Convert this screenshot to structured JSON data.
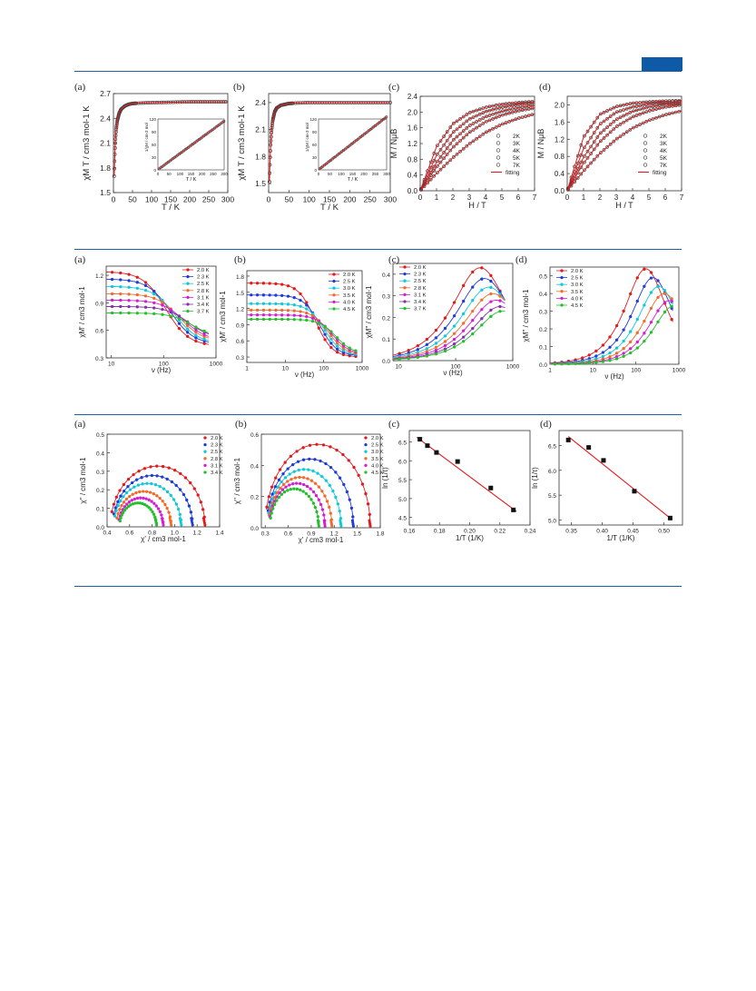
{
  "colors": {
    "rule": "#1b5fa6",
    "accent": "#0e5aa7",
    "fit": "#e31a1c",
    "marker": "#555555"
  },
  "chart_data": [
    {
      "id": "r1a",
      "type": "line",
      "panel": "(a)",
      "xlabel": "T / K",
      "ylabel": "χM T / cm3 mol-1 K",
      "xlim": [
        0,
        300
      ],
      "ylim": [
        1.5,
        2.7
      ],
      "xticks": [
        "0",
        "50",
        "100",
        "150",
        "200",
        "250",
        "300"
      ],
      "yticks": [
        "1.5",
        "1.8",
        "2.1",
        "2.4",
        "2.7"
      ],
      "series": [
        {
          "x": [
            1.8,
            3,
            4,
            5,
            7,
            10,
            15,
            20,
            30,
            40,
            50,
            70,
            100,
            150,
            200,
            250,
            300
          ],
          "y": [
            1.7,
            1.88,
            2.02,
            2.12,
            2.26,
            2.37,
            2.46,
            2.51,
            2.55,
            2.57,
            2.58,
            2.585,
            2.59,
            2.595,
            2.6,
            2.6,
            2.6
          ]
        }
      ],
      "inset": {
        "xlabel": "T / K",
        "ylabel": "1/χM / cm-3 mol",
        "xlim": [
          0,
          300
        ],
        "ylim": [
          0,
          120
        ],
        "xticks": [
          "0",
          "50",
          "100",
          "150",
          "200",
          "250",
          "300"
        ],
        "yticks": [
          "0",
          "30",
          "60",
          "90",
          "120"
        ],
        "x": [
          2,
          300
        ],
        "y": [
          1.2,
          115
        ]
      }
    },
    {
      "id": "r1b",
      "type": "line",
      "panel": "(b)",
      "xlabel": "T / K",
      "ylabel": "χM T / cm3 mol-1 K",
      "xlim": [
        0,
        300
      ],
      "ylim": [
        1.4,
        2.5
      ],
      "xticks": [
        "0",
        "50",
        "100",
        "150",
        "200",
        "250",
        "300"
      ],
      "yticks": [
        "1.5",
        "1.8",
        "2.1",
        "2.4"
      ],
      "series": [
        {
          "x": [
            2,
            3,
            4,
            5,
            7,
            10,
            15,
            20,
            30,
            40,
            50,
            70,
            100,
            150,
            200,
            250,
            300
          ],
          "y": [
            1.52,
            1.68,
            1.82,
            1.93,
            2.08,
            2.2,
            2.3,
            2.34,
            2.37,
            2.38,
            2.39,
            2.395,
            2.4,
            2.4,
            2.4,
            2.4,
            2.4
          ]
        }
      ],
      "inset": {
        "xlabel": "T / K",
        "ylabel": "1/χM / cm-3 mol",
        "xlim": [
          0,
          300
        ],
        "ylim": [
          0,
          120
        ],
        "xticks": [
          "0",
          "50",
          "100",
          "150",
          "200",
          "250",
          "300"
        ],
        "yticks": [
          "0",
          "30",
          "60",
          "90",
          "120"
        ],
        "x": [
          2,
          300
        ],
        "y": [
          1.3,
          125
        ]
      }
    },
    {
      "id": "r1c",
      "type": "line",
      "panel": "(c)",
      "xlabel": "H / T",
      "ylabel": "M / NμB",
      "xlim": [
        0,
        7
      ],
      "ylim": [
        0,
        2.4
      ],
      "xticks": [
        "0",
        "1",
        "2",
        "3",
        "4",
        "5",
        "6",
        "7"
      ],
      "yticks": [
        "0.0",
        "0.4",
        "0.8",
        "1.2",
        "1.6",
        "2.0",
        "2.4"
      ],
      "legend": [
        "2K",
        "3K",
        "4K",
        "5K",
        "7K",
        "fitting"
      ],
      "series": [
        {
          "name": "2K",
          "x": [
            0,
            1,
            2,
            3,
            4,
            5,
            6,
            7
          ],
          "y": [
            0,
            1.12,
            1.7,
            1.98,
            2.12,
            2.2,
            2.24,
            2.27
          ]
        },
        {
          "name": "3K",
          "x": [
            0,
            1,
            2,
            3,
            4,
            5,
            6,
            7
          ],
          "y": [
            0,
            0.9,
            1.48,
            1.82,
            2.01,
            2.12,
            2.19,
            2.23
          ]
        },
        {
          "name": "4K",
          "x": [
            0,
            1,
            2,
            3,
            4,
            5,
            6,
            7
          ],
          "y": [
            0,
            0.72,
            1.28,
            1.65,
            1.88,
            2.02,
            2.11,
            2.17
          ]
        },
        {
          "name": "5K",
          "x": [
            0,
            1,
            2,
            3,
            4,
            5,
            6,
            7
          ],
          "y": [
            0,
            0.6,
            1.1,
            1.48,
            1.75,
            1.92,
            2.03,
            2.1
          ]
        },
        {
          "name": "7K",
          "x": [
            0,
            1,
            2,
            3,
            4,
            5,
            6,
            7
          ],
          "y": [
            0,
            0.44,
            0.84,
            1.19,
            1.48,
            1.69,
            1.84,
            1.95
          ]
        }
      ]
    },
    {
      "id": "r1d",
      "type": "line",
      "panel": "(d)",
      "xlabel": "H / T",
      "ylabel": "M / NμB",
      "xlim": [
        0,
        7
      ],
      "ylim": [
        0,
        2.2
      ],
      "xticks": [
        "0",
        "1",
        "2",
        "3",
        "4",
        "5",
        "6",
        "7"
      ],
      "yticks": [
        "0.0",
        "0.4",
        "0.8",
        "1.2",
        "1.6",
        "2.0"
      ],
      "legend": [
        "2K",
        "3K",
        "4K",
        "5K",
        "7K",
        "fitting"
      ],
      "series": [
        {
          "name": "2K",
          "x": [
            0,
            1,
            2,
            3,
            4,
            5,
            6,
            7
          ],
          "y": [
            0,
            1.25,
            1.78,
            1.96,
            2.04,
            2.07,
            2.09,
            2.1
          ]
        },
        {
          "name": "3K",
          "x": [
            0,
            1,
            2,
            3,
            4,
            5,
            6,
            7
          ],
          "y": [
            0,
            0.98,
            1.55,
            1.83,
            1.95,
            2.02,
            2.05,
            2.08
          ]
        },
        {
          "name": "4K",
          "x": [
            0,
            1,
            2,
            3,
            4,
            5,
            6,
            7
          ],
          "y": [
            0,
            0.78,
            1.33,
            1.66,
            1.85,
            1.95,
            2.01,
            2.04
          ]
        },
        {
          "name": "5K",
          "x": [
            0,
            1,
            2,
            3,
            4,
            5,
            6,
            7
          ],
          "y": [
            0,
            0.64,
            1.14,
            1.49,
            1.72,
            1.86,
            1.95,
            2.0
          ]
        },
        {
          "name": "7K",
          "x": [
            0,
            1,
            2,
            3,
            4,
            5,
            6,
            7
          ],
          "y": [
            0,
            0.46,
            0.87,
            1.2,
            1.46,
            1.64,
            1.77,
            1.86
          ]
        }
      ]
    },
    {
      "id": "r2a",
      "type": "line",
      "panel": "(a)",
      "xlabel": "ν (Hz)",
      "ylabel": "χM' / cm3 mol-1",
      "xscale": "log",
      "xlim": [
        8,
        1000
      ],
      "ylim": [
        0.3,
        1.3
      ],
      "xticks": [
        "10",
        "100",
        "1000"
      ],
      "yticks": [
        "0.3",
        "0.6",
        "0.9",
        "1.2"
      ],
      "legend": [
        "2.0 K",
        "2.3 K",
        "2.5 K",
        "2.8 K",
        "3.1 K",
        "3.4 K",
        "3.7 K"
      ],
      "series": [
        {
          "name": "2.0 K",
          "y0": 1.24,
          "y1": 0.43,
          "nu0": 110
        },
        {
          "name": "2.3 K",
          "y0": 1.16,
          "y1": 0.45,
          "nu0": 135
        },
        {
          "name": "2.5 K",
          "y0": 1.08,
          "y1": 0.46,
          "nu0": 165
        },
        {
          "name": "2.8 K",
          "y0": 1.0,
          "y1": 0.48,
          "nu0": 200
        },
        {
          "name": "3.1 K",
          "y0": 0.93,
          "y1": 0.49,
          "nu0": 245
        },
        {
          "name": "3.4 K",
          "y0": 0.86,
          "y1": 0.51,
          "nu0": 300
        },
        {
          "name": "3.7 K",
          "y0": 0.79,
          "y1": 0.52,
          "nu0": 360
        }
      ]
    },
    {
      "id": "r2b",
      "type": "line",
      "panel": "(b)",
      "xlabel": "ν (Hz)",
      "ylabel": "χM' / cm3 mol-1",
      "xscale": "log",
      "xlim": [
        1,
        1000
      ],
      "ylim": [
        0.2,
        1.9
      ],
      "xticks": [
        "1",
        "10",
        "100",
        "1000"
      ],
      "yticks": [
        "0.3",
        "0.6",
        "0.9",
        "1.2",
        "1.5",
        "1.8"
      ],
      "legend": [
        "2.0 K",
        "2.5 K",
        "3.0 K",
        "3.5 K",
        "4.0 K",
        "4.5 K"
      ],
      "series": [
        {
          "name": "2.0 K",
          "y0": 1.67,
          "y1": 0.3,
          "nu0": 60
        },
        {
          "name": "2.5 K",
          "y0": 1.45,
          "y1": 0.32,
          "nu0": 80
        },
        {
          "name": "3.0 K",
          "y0": 1.29,
          "y1": 0.33,
          "nu0": 105
        },
        {
          "name": "3.5 K",
          "y0": 1.17,
          "y1": 0.34,
          "nu0": 135
        },
        {
          "name": "4.0 K",
          "y0": 1.08,
          "y1": 0.35,
          "nu0": 170
        },
        {
          "name": "4.5 K",
          "y0": 1.0,
          "y1": 0.36,
          "nu0": 210
        }
      ]
    },
    {
      "id": "r2c",
      "type": "line",
      "panel": "(c)",
      "xlabel": "ν (Hz)",
      "ylabel": "χM'' / cm3 mol-1",
      "xscale": "log",
      "xlim": [
        8,
        1000
      ],
      "ylim": [
        0,
        0.45
      ],
      "xticks": [
        "10",
        "100",
        "1000"
      ],
      "yticks": [
        "0.0",
        "0.1",
        "0.2",
        "0.3",
        "0.4"
      ],
      "legend": [
        "2.0 K",
        "2.3 K",
        "2.5 K",
        "2.8 K",
        "3.1 K",
        "3.4 K",
        "3.7 K"
      ],
      "series": [
        {
          "name": "2.0 K",
          "peak": 0.43,
          "nu0": 270
        },
        {
          "name": "2.3 K",
          "peak": 0.38,
          "nu0": 320
        },
        {
          "name": "2.5 K",
          "peak": 0.34,
          "nu0": 380
        },
        {
          "name": "2.8 K",
          "peak": 0.31,
          "nu0": 450
        },
        {
          "name": "3.1 K",
          "peak": 0.28,
          "nu0": 520
        },
        {
          "name": "3.4 K",
          "peak": 0.25,
          "nu0": 600
        },
        {
          "name": "3.7 K",
          "peak": 0.23,
          "nu0": 680
        }
      ]
    },
    {
      "id": "r2d",
      "type": "line",
      "panel": "(d)",
      "xlabel": "ν (Hz)",
      "ylabel": "χM'' / cm3 mol-1",
      "xscale": "log",
      "xlim": [
        1,
        1000
      ],
      "ylim": [
        0,
        0.55
      ],
      "xticks": [
        "1",
        "10",
        "100",
        "1000"
      ],
      "yticks": [
        "0.0",
        "0.1",
        "0.2",
        "0.3",
        "0.4",
        "0.5"
      ],
      "legend": [
        "2.0 K",
        "2.5 K",
        "3.0 K",
        "3.5 K",
        "4.0 K",
        "4.5 K"
      ],
      "series": [
        {
          "name": "2.0 K",
          "peak": 0.54,
          "nu0": 170
        },
        {
          "name": "2.5 K",
          "peak": 0.49,
          "nu0": 250
        },
        {
          "name": "3.0 K",
          "peak": 0.44,
          "nu0": 340
        },
        {
          "name": "3.5 K",
          "peak": 0.4,
          "nu0": 460
        },
        {
          "name": "4.0 K",
          "peak": 0.36,
          "nu0": 600
        },
        {
          "name": "4.5 K",
          "peak": 0.33,
          "nu0": 760
        }
      ]
    },
    {
      "id": "r3a",
      "type": "scatter",
      "panel": "(a)",
      "xlabel": "χ' / cm3 mol-1",
      "ylabel": "χ'' / cm3 mol-1",
      "xlim": [
        0.4,
        1.4
      ],
      "ylim": [
        0,
        0.5
      ],
      "xticks": [
        "0.4",
        "0.6",
        "0.8",
        "1.0",
        "1.2",
        "1.4"
      ],
      "yticks": [
        "0.0",
        "0.1",
        "0.2",
        "0.3",
        "0.4",
        "0.5"
      ],
      "legend": [
        "2.0 K",
        "2.3 K",
        "2.5 K",
        "2.8 K",
        "3.1 K",
        "3.4 K"
      ],
      "series": [
        {
          "name": "2.0 K",
          "xs": 0.43,
          "x0": 1.27
        },
        {
          "name": "2.3 K",
          "xs": 0.45,
          "x0": 1.16
        },
        {
          "name": "2.5 K",
          "xs": 0.46,
          "x0": 1.06
        },
        {
          "name": "2.8 K",
          "xs": 0.48,
          "x0": 0.97
        },
        {
          "name": "3.1 K",
          "xs": 0.5,
          "x0": 0.9
        },
        {
          "name": "3.4 K",
          "xs": 0.51,
          "x0": 0.84
        }
      ]
    },
    {
      "id": "r3b",
      "type": "scatter",
      "panel": "(b)",
      "xlabel": "χ' / cm3 mol-1",
      "ylabel": "χ'' / cm3 mol-1",
      "xlim": [
        0.25,
        1.8
      ],
      "ylim": [
        0,
        0.6
      ],
      "xticks": [
        "0.3",
        "0.6",
        "0.9",
        "1.2",
        "1.5",
        "1.8"
      ],
      "yticks": [
        "0.0",
        "0.2",
        "0.4",
        "0.6"
      ],
      "legend": [
        "2.0 K",
        "2.5 K",
        "3.0 K",
        "3.5 K",
        "4.0 K",
        "4.5 K"
      ],
      "series": [
        {
          "name": "2.0 K",
          "xs": 0.3,
          "x0": 1.67
        },
        {
          "name": "2.5 K",
          "xs": 0.32,
          "x0": 1.45
        },
        {
          "name": "3.0 K",
          "xs": 0.33,
          "x0": 1.29
        },
        {
          "name": "3.5 K",
          "xs": 0.34,
          "x0": 1.17
        },
        {
          "name": "4.0 K",
          "xs": 0.35,
          "x0": 1.08
        },
        {
          "name": "4.5 K",
          "xs": 0.36,
          "x0": 1.0
        }
      ]
    },
    {
      "id": "r3c",
      "type": "scatter",
      "panel": "(c)",
      "xlabel": "1/T (1/K)",
      "ylabel": "ln (1/τ)",
      "xlim": [
        0.16,
        0.24
      ],
      "ylim": [
        4.3,
        6.8
      ],
      "xticks": [
        "0.16",
        "0.18",
        "0.20",
        "0.22",
        "0.24"
      ],
      "yticks": [
        "4.5",
        "5.0",
        "5.5",
        "6.0",
        "6.5"
      ],
      "x": [
        0.167,
        0.172,
        0.178,
        0.192,
        0.214,
        0.229
      ],
      "y": [
        6.57,
        6.4,
        6.22,
        5.98,
        5.28,
        4.7
      ],
      "fit": {
        "x": [
          0.165,
          0.231
        ],
        "y": [
          6.62,
          4.66
        ]
      }
    },
    {
      "id": "r3d",
      "type": "scatter",
      "panel": "(d)",
      "xlabel": "1/T (1/K)",
      "ylabel": "ln (1/τ)",
      "xlim": [
        0.33,
        0.53
      ],
      "ylim": [
        4.9,
        6.8
      ],
      "xticks": [
        "0.35",
        "0.40",
        "0.45",
        "0.50"
      ],
      "yticks": [
        "5.0",
        "5.5",
        "6.0",
        "6.5"
      ],
      "x": [
        0.345,
        0.378,
        0.402,
        0.452,
        0.51
      ],
      "y": [
        6.61,
        6.46,
        6.2,
        5.58,
        5.04
      ],
      "fit": {
        "x": [
          0.345,
          0.512
        ],
        "y": [
          6.68,
          5.02
        ]
      }
    }
  ]
}
